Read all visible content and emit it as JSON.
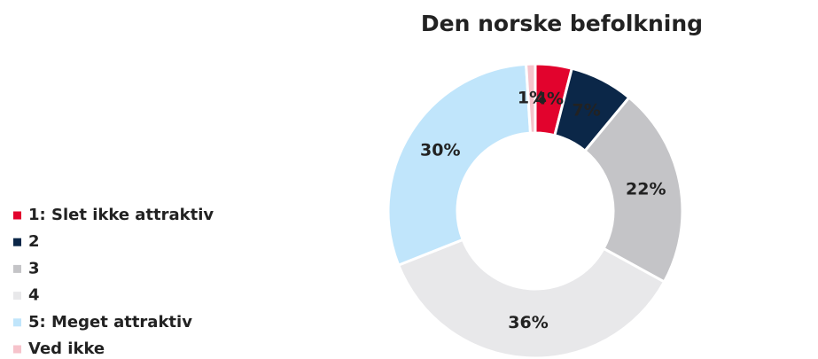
{
  "chart_data": {
    "type": "pie",
    "title": "Den norske befolkning",
    "categories": [
      "1: Slet ikke attraktiv",
      "2",
      "3",
      "4",
      "5: Meget attraktiv",
      "Ved ikke"
    ],
    "values": [
      4,
      7,
      22,
      36,
      30,
      1
    ],
    "value_labels": [
      "4%",
      "7%",
      "22%",
      "36%",
      "30%",
      "1%"
    ],
    "colors": [
      "#e2032d",
      "#0b2748",
      "#c4c4c7",
      "#e8e8ea",
      "#c0e5fb",
      "#f6c3cb"
    ],
    "donut": true,
    "legend": "left"
  }
}
